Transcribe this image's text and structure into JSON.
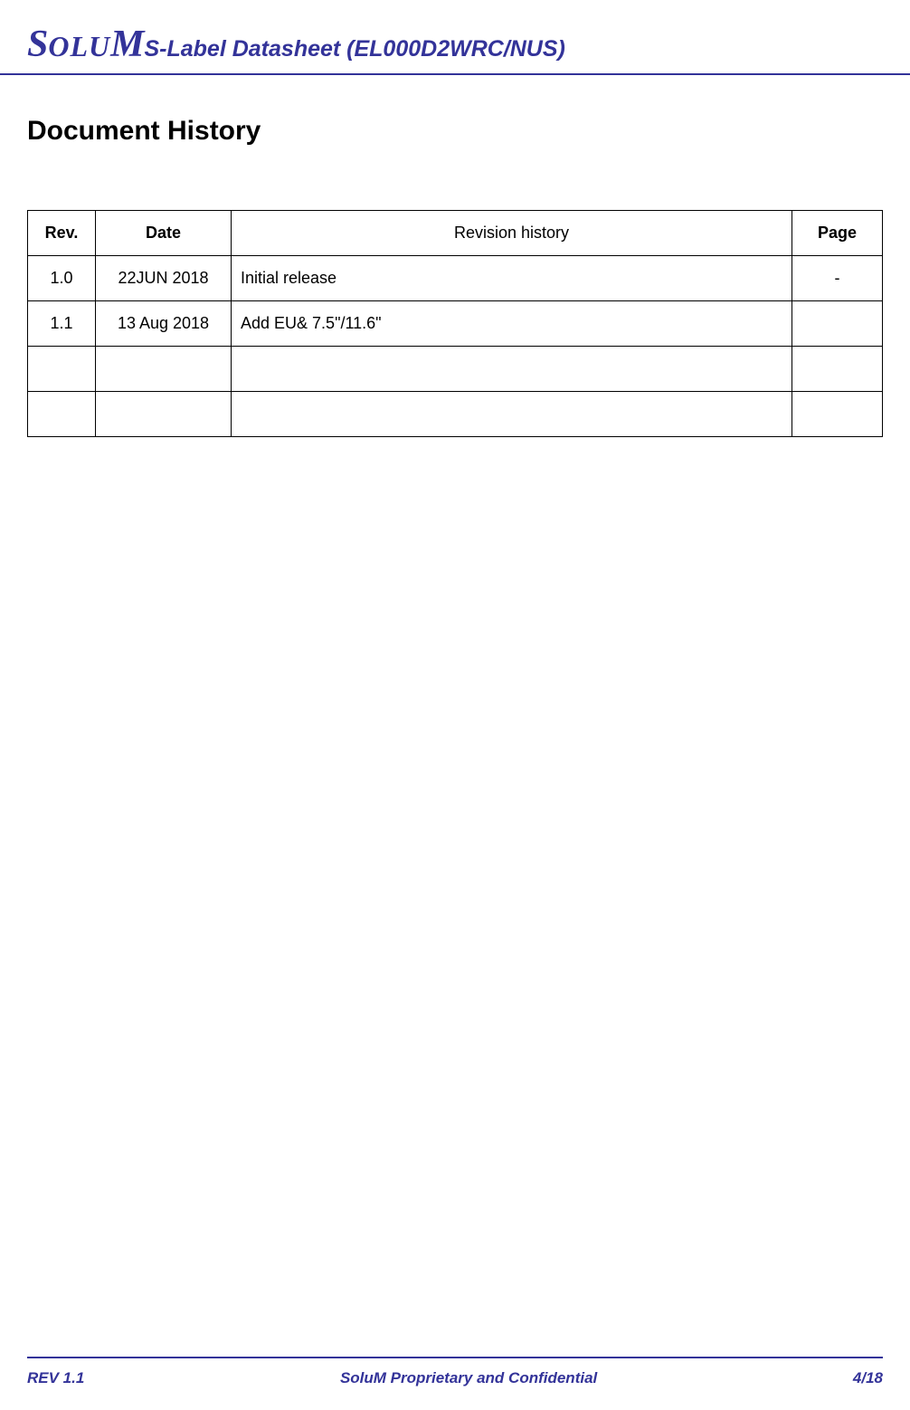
{
  "header": {
    "logo_text_s": "S",
    "logo_text_olu": "OLU",
    "logo_text_m": "M",
    "title": "S-Label Datasheet (EL000D2WRC/NUS)"
  },
  "main": {
    "doc_title": "Document History",
    "table": {
      "columns": {
        "rev": "Rev.",
        "date": "Date",
        "history": "Revision history",
        "page": "Page"
      },
      "rows": [
        {
          "rev": "1.0",
          "date": "22JUN 2018",
          "history": "Initial release",
          "page": "-"
        },
        {
          "rev": "1.1",
          "date": "13 Aug 2018",
          "history": " Add EU& 7.5\"/11.6\"",
          "page": ""
        },
        {
          "rev": "",
          "date": "",
          "history": "",
          "page": ""
        },
        {
          "rev": "",
          "date": "",
          "history": "",
          "page": ""
        }
      ]
    }
  },
  "footer": {
    "rev": "REV 1.1",
    "center": "SoluM Proprietary and Confidential",
    "page": "4/18"
  },
  "styling": {
    "brand_color": "#333399",
    "text_color": "#000000",
    "background": "#ffffff",
    "border_color": "#000000",
    "header_border_width": 2,
    "title_fontsize": 30,
    "header_title_fontsize": 25,
    "table_fontsize": 18,
    "footer_fontsize": 17,
    "col_widths": {
      "rev": 75,
      "date": 150,
      "page": 100
    }
  }
}
